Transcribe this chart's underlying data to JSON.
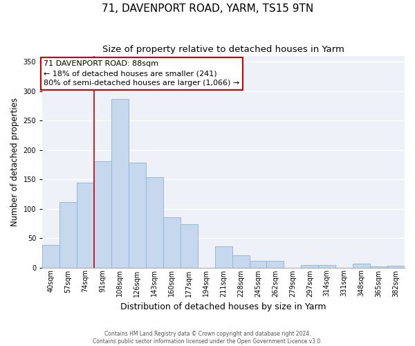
{
  "title": "71, DAVENPORT ROAD, YARM, TS15 9TN",
  "subtitle": "Size of property relative to detached houses in Yarm",
  "xlabel": "Distribution of detached houses by size in Yarm",
  "ylabel": "Number of detached properties",
  "bar_labels": [
    "40sqm",
    "57sqm",
    "74sqm",
    "91sqm",
    "108sqm",
    "126sqm",
    "143sqm",
    "160sqm",
    "177sqm",
    "194sqm",
    "211sqm",
    "228sqm",
    "245sqm",
    "262sqm",
    "279sqm",
    "297sqm",
    "314sqm",
    "331sqm",
    "348sqm",
    "365sqm",
    "382sqm"
  ],
  "bar_values": [
    38,
    111,
    144,
    181,
    286,
    178,
    153,
    85,
    74,
    0,
    36,
    21,
    11,
    11,
    0,
    4,
    4,
    0,
    6,
    2,
    3
  ],
  "bar_color": "#c5d8ed",
  "bar_edge_color": "#8ab4d6",
  "reference_line_color": "#cc0000",
  "annotation_text": "71 DAVENPORT ROAD: 88sqm\n← 18% of detached houses are smaller (241)\n80% of semi-detached houses are larger (1,066) →",
  "annotation_box_color": "#ffffff",
  "annotation_box_edge_color": "#cc0000",
  "ylim": [
    0,
    360
  ],
  "yticks": [
    0,
    50,
    100,
    150,
    200,
    250,
    300,
    350
  ],
  "footer_line1": "Contains HM Land Registry data © Crown copyright and database right 2024.",
  "footer_line2": "Contains public sector information licensed under the Open Government Licence v3.0.",
  "bg_color": "#eef2f8",
  "grid_color": "#d0d8e8",
  "title_fontsize": 11,
  "subtitle_fontsize": 9.5,
  "xlabel_fontsize": 9,
  "ylabel_fontsize": 8.5,
  "tick_fontsize": 7,
  "annotation_fontsize": 8,
  "footer_fontsize": 5.5
}
